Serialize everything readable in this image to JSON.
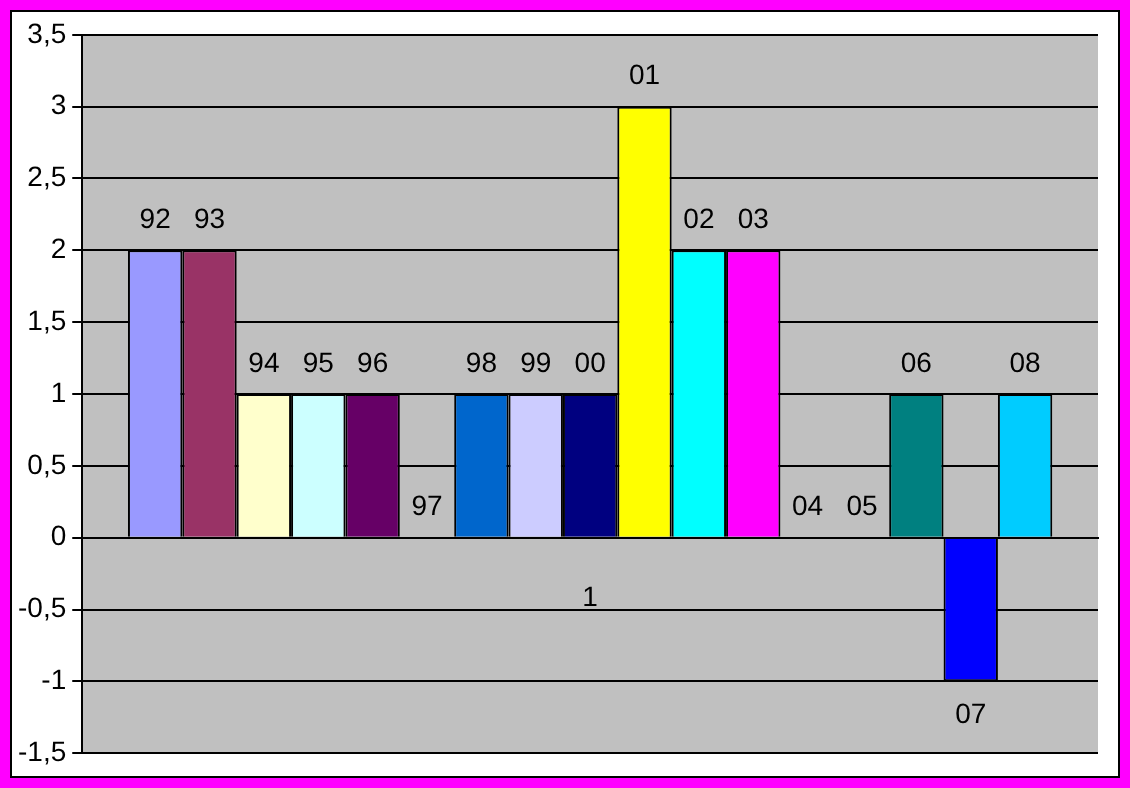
{
  "chart_data": {
    "type": "bar",
    "categories": [
      "1"
    ],
    "series": [
      {
        "name": "92",
        "color": "#9999ff",
        "values": [
          2
        ]
      },
      {
        "name": "93",
        "color": "#993366",
        "values": [
          2
        ]
      },
      {
        "name": "94",
        "color": "#ffffcc",
        "values": [
          1
        ]
      },
      {
        "name": "95",
        "color": "#ccffff",
        "values": [
          1
        ]
      },
      {
        "name": "96",
        "color": "#660066",
        "values": [
          1
        ]
      },
      {
        "name": "97",
        "values": [
          0
        ]
      },
      {
        "name": "98",
        "color": "#0066cc",
        "values": [
          1
        ]
      },
      {
        "name": "99",
        "color": "#ccccff",
        "values": [
          1
        ]
      },
      {
        "name": "00",
        "color": "#000080",
        "values": [
          1
        ]
      },
      {
        "name": "01",
        "color": "#ffff00",
        "values": [
          3
        ]
      },
      {
        "name": "02",
        "color": "#00ffff",
        "values": [
          2
        ]
      },
      {
        "name": "03",
        "color": "#ff00ff",
        "values": [
          2
        ]
      },
      {
        "name": "04",
        "values": [
          0
        ]
      },
      {
        "name": "05",
        "values": [
          0
        ]
      },
      {
        "name": "06",
        "color": "#008080",
        "values": [
          1
        ]
      },
      {
        "name": "07",
        "color": "#0000ff",
        "values": [
          -1
        ]
      },
      {
        "name": "08",
        "color": "#00ccff",
        "values": [
          1
        ]
      }
    ],
    "ylim": [
      -1.5,
      3.5
    ],
    "yticks": [
      {
        "value": -1.5,
        "label": "-1,5"
      },
      {
        "value": -1,
        "label": "-1"
      },
      {
        "value": -0.5,
        "label": "-0,5"
      },
      {
        "value": 0,
        "label": "0"
      },
      {
        "value": 0.5,
        "label": "0,5"
      },
      {
        "value": 1,
        "label": "1"
      },
      {
        "value": 1.5,
        "label": "1,5"
      },
      {
        "value": 2,
        "label": "2"
      },
      {
        "value": 2.5,
        "label": "2,5"
      },
      {
        "value": 3,
        "label": "3"
      },
      {
        "value": 3.5,
        "label": "3,5"
      }
    ],
    "grid": "y",
    "legend": false
  }
}
